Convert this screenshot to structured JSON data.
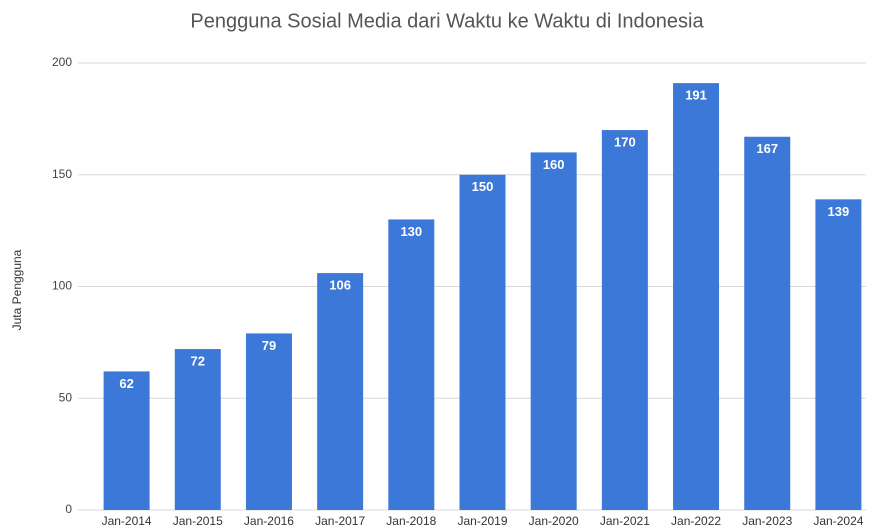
{
  "chart_data": {
    "type": "bar",
    "title": "Pengguna Sosial Media dari Waktu ke Waktu di Indonesia",
    "y_label": "Juta Pengguna",
    "categories": [
      "Jan-2014",
      "Jan-2015",
      "Jan-2016",
      "Jan-2017",
      "Jan-2018",
      "Jan-2019",
      "Jan-2020",
      "Jan-2021",
      "Jan-2022",
      "Jan-2023",
      "Jan-2024"
    ],
    "values": [
      62,
      72,
      79,
      106,
      130,
      150,
      160,
      170,
      191,
      167,
      139
    ],
    "color": "#3c78d8",
    "ylim": [
      0,
      200
    ],
    "yticks": [
      0,
      50,
      100,
      150,
      200
    ],
    "grid": true
  }
}
